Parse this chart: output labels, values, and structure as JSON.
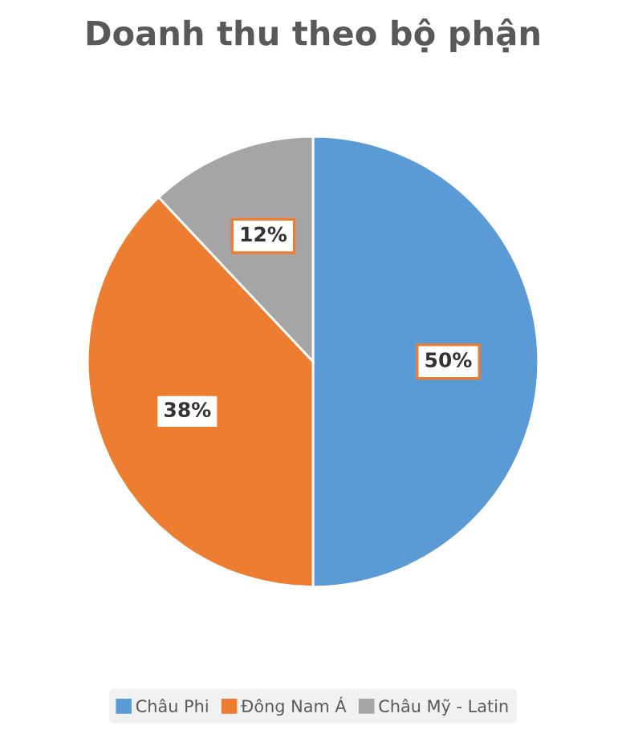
{
  "chart_data": {
    "type": "pie",
    "title": "Doanh thu theo bộ phận",
    "categories": [
      "Châu Phi",
      "Đông Nam Á",
      "Châu Mỹ - Latin"
    ],
    "values": [
      50,
      38,
      12
    ],
    "colors": [
      "#5b9bd5",
      "#ed7d31",
      "#a5a5a5"
    ],
    "value_labels": [
      "50%",
      "38%",
      "12%"
    ],
    "legend": "bottom"
  }
}
